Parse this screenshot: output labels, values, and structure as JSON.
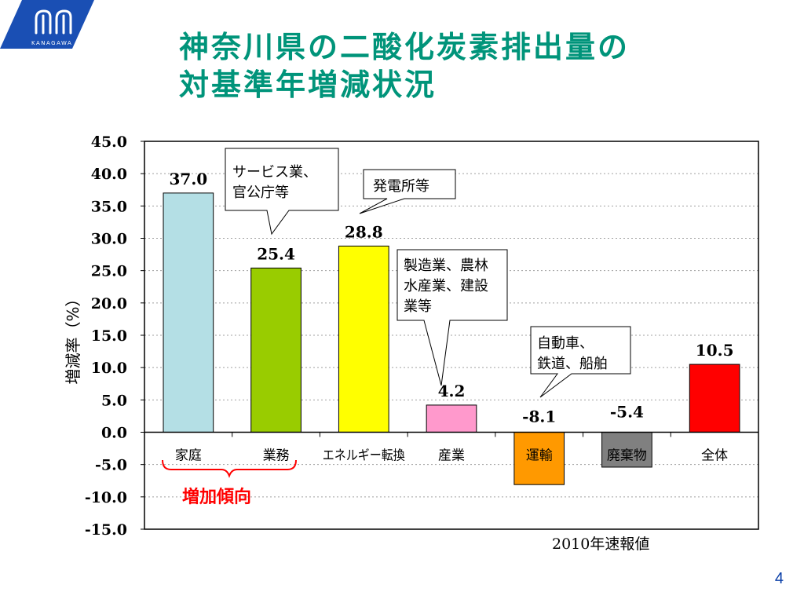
{
  "logo": {
    "text": "KANAGAWA",
    "color": "#1a4fb4"
  },
  "title": {
    "line1": "神奈川県の二酸化炭素排出量の",
    "line2": "対基準年増減状況",
    "color": "#00947a"
  },
  "chart_data": {
    "type": "bar",
    "categories": [
      "家庭",
      "業務",
      "エネルギー転換",
      "産業",
      "運輸",
      "廃棄物",
      "全体"
    ],
    "values": [
      37.0,
      25.4,
      28.8,
      4.2,
      -8.1,
      -5.4,
      10.5
    ],
    "value_labels": [
      "37.0",
      "25.4",
      "28.8",
      "4.2",
      "-8.1",
      "-5.4",
      "10.5"
    ],
    "colors": [
      "#b4dfe5",
      "#99cc00",
      "#ffff00",
      "#ff99cc",
      "#ff9900",
      "#808080",
      "#ff0000"
    ],
    "ylabel": "増減率（%）",
    "ylim": [
      -15,
      45
    ],
    "yticks": [
      "45.0",
      "40.0",
      "35.0",
      "30.0",
      "25.0",
      "20.0",
      "15.0",
      "10.0",
      "5.0",
      "0.0",
      "-5.0",
      "-10.0",
      "-15.0"
    ],
    "grid": true,
    "annotations": {
      "callout_service": [
        "サービス業、",
        "官公庁等"
      ],
      "callout_power": [
        "発電所等"
      ],
      "callout_industry": [
        "製造業、農林",
        "水産業、建設",
        "業等"
      ],
      "callout_transport": [
        "自動車、",
        "鉄道、船舶"
      ],
      "increase_trend": "増加傾向",
      "footnote_year": "2010",
      "footnote_text": "年速報値"
    }
  },
  "page_number": "4"
}
